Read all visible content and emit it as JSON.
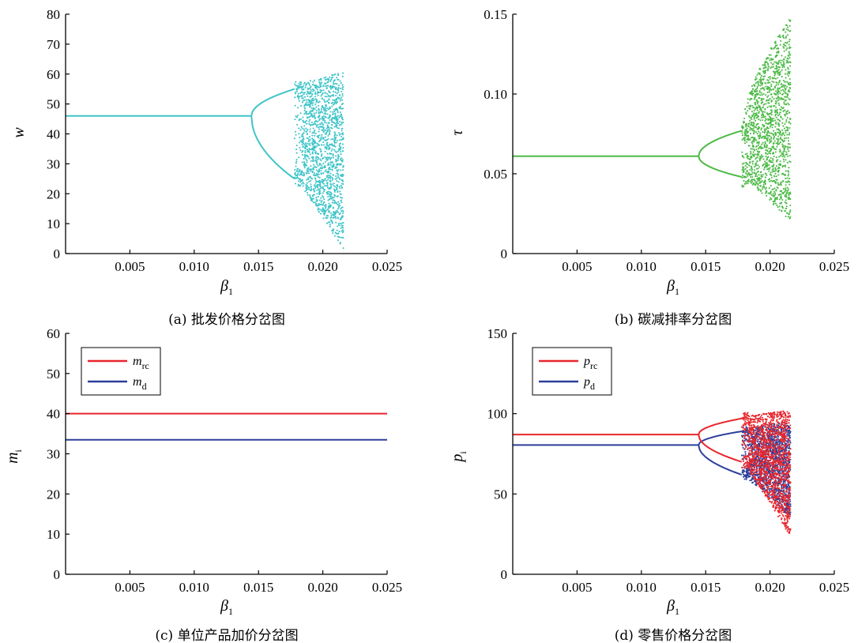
{
  "chart_data": [
    {
      "id": "a",
      "type": "scatter",
      "caption": "(a) 批发价格分岔图",
      "xlabel": "β",
      "xlabel_sub": "1",
      "ylabel": "w",
      "ylabel_sub": "",
      "xlim": [
        0,
        0.025
      ],
      "ylim": [
        0,
        80
      ],
      "xticks": [
        0.005,
        0.01,
        0.015,
        0.02,
        0.025
      ],
      "xtick_labels": [
        "0.005",
        "0.010",
        "0.015",
        "0.020",
        "0.025"
      ],
      "yticks": [
        0,
        10,
        20,
        30,
        40,
        50,
        60,
        70,
        80
      ],
      "ytick_labels": [
        "0",
        "10",
        "20",
        "30",
        "40",
        "50",
        "60",
        "70",
        "80"
      ],
      "legend": [],
      "series": [
        {
          "color": "#3fc4c8",
          "fixed": 46.0,
          "bif1": 0.01445,
          "bif2": 0.0178,
          "xmax": 0.0216,
          "upper": 55.0,
          "lower": 25.0,
          "chaos_top": 60.5,
          "chaos_bottom": 1.0
        }
      ]
    },
    {
      "id": "b",
      "type": "scatter",
      "caption": "(b) 碳减排率分岔图",
      "xlabel": "β",
      "xlabel_sub": "1",
      "ylabel": "τ",
      "ylabel_sub": "",
      "xlim": [
        0,
        0.025
      ],
      "ylim": [
        0,
        0.15
      ],
      "xticks": [
        0.005,
        0.01,
        0.015,
        0.02,
        0.025
      ],
      "xtick_labels": [
        "0.005",
        "0.010",
        "0.015",
        "0.020",
        "0.025"
      ],
      "yticks": [
        0,
        0.05,
        0.1,
        0.15
      ],
      "ytick_labels": [
        "0",
        "0.05",
        "0.10",
        "0.15"
      ],
      "legend": [],
      "series": [
        {
          "color": "#4cba46",
          "fixed": 0.061,
          "bif1": 0.01445,
          "bif2": 0.0178,
          "xmax": 0.0216,
          "upper": 0.077,
          "lower": 0.048,
          "chaos_top": 0.148,
          "chaos_bottom": 0.02
        }
      ]
    },
    {
      "id": "c",
      "type": "line",
      "caption": "(c) 单位产品加价分岔图",
      "xlabel": "β",
      "xlabel_sub": "1",
      "ylabel": "m",
      "ylabel_sub": "i",
      "xlim": [
        0,
        0.025
      ],
      "ylim": [
        0,
        60
      ],
      "xticks": [
        0.005,
        0.01,
        0.015,
        0.02,
        0.025
      ],
      "xtick_labels": [
        "0.005",
        "0.010",
        "0.015",
        "0.020",
        "0.025"
      ],
      "yticks": [
        0,
        10,
        20,
        30,
        40,
        50,
        60
      ],
      "ytick_labels": [
        "0",
        "10",
        "20",
        "30",
        "40",
        "50",
        "60"
      ],
      "legend": [
        {
          "name": "m",
          "sub": "rc",
          "color": "#e8262d"
        },
        {
          "name": "m",
          "sub": "d",
          "color": "#2d3f9a"
        }
      ],
      "series": [
        {
          "color": "#e8262d",
          "value": 40.0,
          "xmax": 0.025
        },
        {
          "color": "#2d3f9a",
          "value": 33.5,
          "xmax": 0.025
        }
      ]
    },
    {
      "id": "d",
      "type": "scatter",
      "caption": "(d) 零售价格分岔图",
      "xlabel": "β",
      "xlabel_sub": "1",
      "ylabel": "p",
      "ylabel_sub": "i",
      "xlim": [
        0,
        0.025
      ],
      "ylim": [
        0,
        150
      ],
      "xticks": [
        0.005,
        0.01,
        0.015,
        0.02,
        0.025
      ],
      "xtick_labels": [
        "0.005",
        "0.010",
        "0.015",
        "0.020",
        "0.025"
      ],
      "yticks": [
        0,
        50,
        100,
        150
      ],
      "ytick_labels": [
        "0",
        "50",
        "100",
        "150"
      ],
      "legend": [
        {
          "name": "p",
          "sub": "rc",
          "color": "#e8262d"
        },
        {
          "name": "p",
          "sub": "d",
          "color": "#2d3f9a"
        }
      ],
      "series": [
        {
          "color": "#2d3f9a",
          "fixed": 80.5,
          "bif1": 0.01445,
          "bif2": 0.0178,
          "xmax": 0.0216,
          "upper": 89.0,
          "lower": 62.0,
          "chaos_top": 95.0,
          "chaos_bottom": 35.0
        },
        {
          "color": "#e8262d",
          "fixed": 87.0,
          "bif1": 0.01445,
          "bif2": 0.0178,
          "xmax": 0.0216,
          "upper": 97.0,
          "lower": 70.0,
          "chaos_top": 102.0,
          "chaos_bottom": 23.0
        }
      ]
    }
  ]
}
